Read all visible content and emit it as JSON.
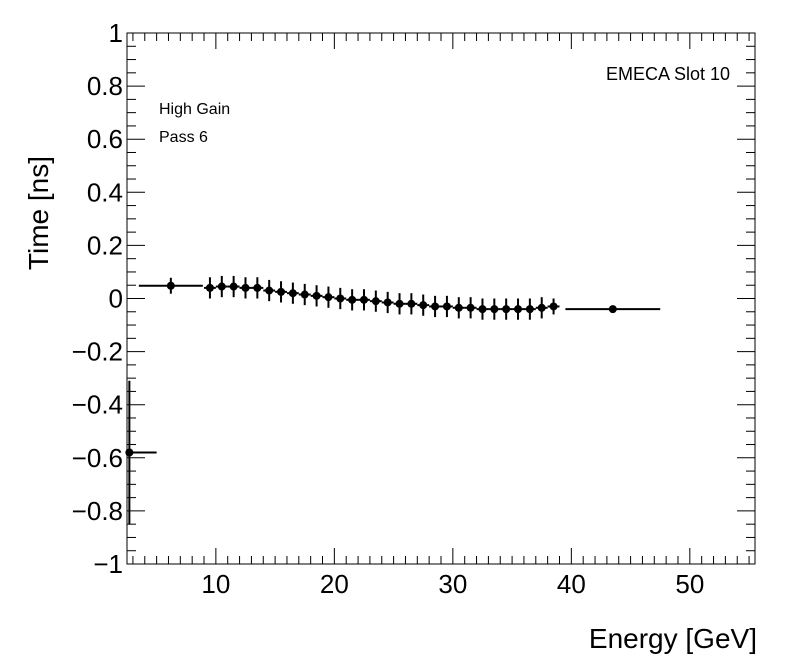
{
  "chart_data": {
    "type": "scatter",
    "xlabel": "Energy [GeV]",
    "ylabel": "Time [ns]",
    "xlim": [
      2.5,
      55.5
    ],
    "ylim": [
      -1,
      1
    ],
    "x_ticks": [
      10,
      20,
      30,
      40,
      50
    ],
    "x_tick_labels": [
      "10",
      "20",
      "30",
      "40",
      "50"
    ],
    "y_ticks": [
      -1,
      -0.8,
      -0.6,
      -0.4,
      -0.2,
      0,
      0.2,
      0.4,
      0.6,
      0.8,
      1
    ],
    "y_tick_labels": [
      "−1",
      "−0.8",
      "−0.6",
      "−0.4",
      "−0.2",
      "0",
      "0.2",
      "0.4",
      "0.6",
      "0.8",
      "1"
    ],
    "grid": false,
    "legend": "none",
    "annotations": {
      "top_right": "EMECA Slot 10",
      "gain": "High Gain",
      "pass": "Pass 6"
    },
    "marker_color": "#000000",
    "points": [
      {
        "x": 2.7,
        "y": -0.58,
        "xerr_low": 0.2,
        "xerr_high": 2.3,
        "yerr": 0.27
      },
      {
        "x": 6.2,
        "y": 0.048,
        "xerr_low": 2.7,
        "xerr_high": 2.7,
        "yerr": 0.03
      },
      {
        "x": 9.5,
        "y": 0.04,
        "xerr_low": 0.5,
        "xerr_high": 0.5,
        "yerr": 0.04
      },
      {
        "x": 10.5,
        "y": 0.045,
        "xerr_low": 0.5,
        "xerr_high": 0.5,
        "yerr": 0.04
      },
      {
        "x": 11.5,
        "y": 0.045,
        "xerr_low": 0.5,
        "xerr_high": 0.5,
        "yerr": 0.04
      },
      {
        "x": 12.5,
        "y": 0.04,
        "xerr_low": 0.5,
        "xerr_high": 0.5,
        "yerr": 0.04
      },
      {
        "x": 13.5,
        "y": 0.04,
        "xerr_low": 0.5,
        "xerr_high": 0.5,
        "yerr": 0.04
      },
      {
        "x": 14.5,
        "y": 0.03,
        "xerr_low": 0.5,
        "xerr_high": 0.5,
        "yerr": 0.04
      },
      {
        "x": 15.5,
        "y": 0.025,
        "xerr_low": 0.5,
        "xerr_high": 0.5,
        "yerr": 0.04
      },
      {
        "x": 16.5,
        "y": 0.02,
        "xerr_low": 0.5,
        "xerr_high": 0.5,
        "yerr": 0.04
      },
      {
        "x": 17.5,
        "y": 0.015,
        "xerr_low": 0.5,
        "xerr_high": 0.5,
        "yerr": 0.04
      },
      {
        "x": 18.5,
        "y": 0.01,
        "xerr_low": 0.5,
        "xerr_high": 0.5,
        "yerr": 0.04
      },
      {
        "x": 19.5,
        "y": 0.005,
        "xerr_low": 0.5,
        "xerr_high": 0.5,
        "yerr": 0.04
      },
      {
        "x": 20.5,
        "y": 0.0,
        "xerr_low": 0.5,
        "xerr_high": 0.5,
        "yerr": 0.04
      },
      {
        "x": 21.5,
        "y": -0.005,
        "xerr_low": 0.5,
        "xerr_high": 0.5,
        "yerr": 0.04
      },
      {
        "x": 22.5,
        "y": -0.005,
        "xerr_low": 0.5,
        "xerr_high": 0.5,
        "yerr": 0.04
      },
      {
        "x": 23.5,
        "y": -0.01,
        "xerr_low": 0.5,
        "xerr_high": 0.5,
        "yerr": 0.04
      },
      {
        "x": 24.5,
        "y": -0.015,
        "xerr_low": 0.5,
        "xerr_high": 0.5,
        "yerr": 0.04
      },
      {
        "x": 25.5,
        "y": -0.02,
        "xerr_low": 0.5,
        "xerr_high": 0.5,
        "yerr": 0.04
      },
      {
        "x": 26.5,
        "y": -0.02,
        "xerr_low": 0.5,
        "xerr_high": 0.5,
        "yerr": 0.04
      },
      {
        "x": 27.5,
        "y": -0.025,
        "xerr_low": 0.5,
        "xerr_high": 0.5,
        "yerr": 0.04
      },
      {
        "x": 28.5,
        "y": -0.03,
        "xerr_low": 0.5,
        "xerr_high": 0.5,
        "yerr": 0.04
      },
      {
        "x": 29.5,
        "y": -0.03,
        "xerr_low": 0.5,
        "xerr_high": 0.5,
        "yerr": 0.04
      },
      {
        "x": 30.5,
        "y": -0.035,
        "xerr_low": 0.5,
        "xerr_high": 0.5,
        "yerr": 0.04
      },
      {
        "x": 31.5,
        "y": -0.035,
        "xerr_low": 0.5,
        "xerr_high": 0.5,
        "yerr": 0.04
      },
      {
        "x": 32.5,
        "y": -0.04,
        "xerr_low": 0.5,
        "xerr_high": 0.5,
        "yerr": 0.04
      },
      {
        "x": 33.5,
        "y": -0.04,
        "xerr_low": 0.5,
        "xerr_high": 0.5,
        "yerr": 0.04
      },
      {
        "x": 34.5,
        "y": -0.04,
        "xerr_low": 0.5,
        "xerr_high": 0.5,
        "yerr": 0.04
      },
      {
        "x": 35.5,
        "y": -0.04,
        "xerr_low": 0.5,
        "xerr_high": 0.5,
        "yerr": 0.04
      },
      {
        "x": 36.5,
        "y": -0.04,
        "xerr_low": 0.5,
        "xerr_high": 0.5,
        "yerr": 0.04
      },
      {
        "x": 37.5,
        "y": -0.035,
        "xerr_low": 0.5,
        "xerr_high": 0.5,
        "yerr": 0.04
      },
      {
        "x": 38.5,
        "y": -0.03,
        "xerr_low": 0.5,
        "xerr_high": 0.5,
        "yerr": 0.03
      },
      {
        "x": 43.5,
        "y": -0.04,
        "xerr_low": 4.0,
        "xerr_high": 4.0,
        "yerr": 0.01
      }
    ]
  }
}
